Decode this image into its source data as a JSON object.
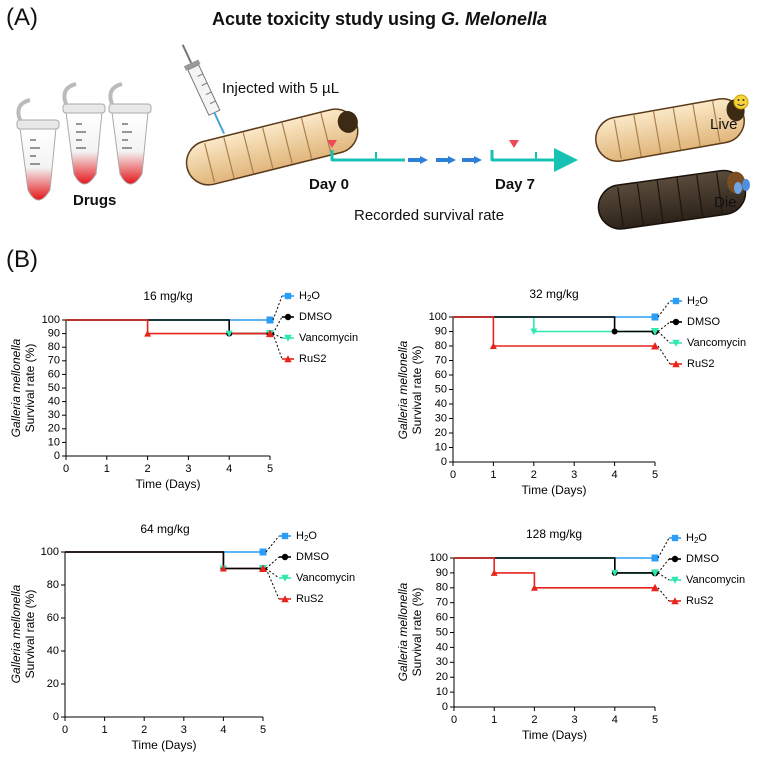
{
  "panel_a": {
    "label": "(A)",
    "title_prefix": "Acute toxicity study using ",
    "title_species": "G. Melonella",
    "drugs_label": "Drugs",
    "injection_label": "Injected with 5 µL",
    "day0_label": "Day 0",
    "day7_label": "Day 7",
    "recorded_label": "Recorded survival rate",
    "live_label": "Live",
    "die_label": "Die"
  },
  "panel_b": {
    "label": "(B)"
  },
  "colors": {
    "h2o": "#2a9df4",
    "dmso": "#000000",
    "vancomycin": "#2ee8b0",
    "rus2": "#e8231c",
    "timeline": "#17c1b4",
    "arrow": "#2f7fd6"
  },
  "chart_data": [
    {
      "type": "line",
      "step": true,
      "title": "16 mg/kg",
      "xlabel": "Time (Days)",
      "ylabel_line1": "Galleria mellonella",
      "ylabel_line2": "Survival rate (%)",
      "xlim": [
        0,
        5
      ],
      "ylim": [
        0,
        100
      ],
      "xticks": [
        0,
        1,
        2,
        3,
        4,
        5
      ],
      "yticks": [
        0,
        10,
        20,
        30,
        40,
        50,
        60,
        70,
        80,
        90,
        100
      ],
      "legend": [
        "H2O",
        "DMSO",
        "Vancomycin",
        "RuS2"
      ],
      "series": [
        {
          "name": "H2O",
          "key": "h2o",
          "marker": "square",
          "x": [
            0,
            5
          ],
          "y": [
            100,
            100
          ]
        },
        {
          "name": "Vancomycin",
          "key": "vancomycin",
          "marker": "tri-down",
          "x": [
            0,
            4,
            5
          ],
          "y": [
            100,
            90,
            90
          ]
        },
        {
          "name": "DMSO",
          "key": "dmso",
          "marker": "circle",
          "x": [
            0,
            4,
            5
          ],
          "y": [
            100,
            90,
            90
          ]
        },
        {
          "name": "RuS2",
          "key": "rus2",
          "marker": "tri-up",
          "x": [
            0,
            2,
            5
          ],
          "y": [
            100,
            90,
            90
          ]
        }
      ]
    },
    {
      "type": "line",
      "step": true,
      "title": "32 mg/kg",
      "xlabel": "Time (Days)",
      "ylabel_line1": "Galleria mellonella",
      "ylabel_line2": "Survival rate (%)",
      "xlim": [
        0,
        5
      ],
      "ylim": [
        0,
        100
      ],
      "xticks": [
        0,
        1,
        2,
        3,
        4,
        5
      ],
      "yticks": [
        0,
        10,
        20,
        30,
        40,
        50,
        60,
        70,
        80,
        90,
        100
      ],
      "legend": [
        "H2O",
        "DMSO",
        "Vancomycin",
        "RuS2"
      ],
      "series": [
        {
          "name": "H2O",
          "key": "h2o",
          "marker": "square",
          "x": [
            0,
            5
          ],
          "y": [
            100,
            100
          ]
        },
        {
          "name": "Vancomycin",
          "key": "vancomycin",
          "marker": "tri-down",
          "x": [
            0,
            2,
            5
          ],
          "y": [
            100,
            90,
            90
          ]
        },
        {
          "name": "DMSO",
          "key": "dmso",
          "marker": "circle",
          "x": [
            0,
            4,
            5
          ],
          "y": [
            100,
            90,
            90
          ]
        },
        {
          "name": "RuS2",
          "key": "rus2",
          "marker": "tri-up",
          "x": [
            0,
            1,
            5
          ],
          "y": [
            100,
            80,
            80
          ]
        }
      ]
    },
    {
      "type": "line",
      "step": true,
      "title": "64 mg/kg",
      "xlabel": "Time (Days)",
      "ylabel_line1": "Galleria mellonella",
      "ylabel_line2": "Survival rate (%)",
      "xlim": [
        0,
        5
      ],
      "ylim": [
        0,
        100
      ],
      "xticks": [
        0,
        1,
        2,
        3,
        4,
        5
      ],
      "yticks": [
        0,
        20,
        40,
        60,
        80,
        100
      ],
      "legend": [
        "H2O",
        "DMSO",
        "Vancomycin",
        "RuS2"
      ],
      "series": [
        {
          "name": "H2O",
          "key": "h2o",
          "marker": "square",
          "x": [
            0,
            5
          ],
          "y": [
            100,
            100
          ]
        },
        {
          "name": "Vancomycin",
          "key": "vancomycin",
          "marker": "tri-down",
          "x": [
            0,
            4,
            5
          ],
          "y": [
            100,
            90,
            90
          ]
        },
        {
          "name": "RuS2",
          "key": "rus2",
          "marker": "tri-up",
          "x": [
            0,
            4,
            5
          ],
          "y": [
            100,
            90,
            90
          ]
        },
        {
          "name": "DMSO",
          "key": "dmso",
          "marker": "circle",
          "x": [
            0,
            4,
            5
          ],
          "y": [
            100,
            90,
            90
          ]
        }
      ]
    },
    {
      "type": "line",
      "step": true,
      "title": "128 mg/kg",
      "xlabel": "Time (Days)",
      "ylabel_line1": "Galleria mellonella",
      "ylabel_line2": "Survival rate (%)",
      "xlim": [
        0,
        5
      ],
      "ylim": [
        0,
        100
      ],
      "xticks": [
        0,
        1,
        2,
        3,
        4,
        5
      ],
      "yticks": [
        0,
        10,
        20,
        30,
        40,
        50,
        60,
        70,
        80,
        90,
        100
      ],
      "legend": [
        "H2O",
        "DMSO",
        "Vancomycin",
        "RuS2"
      ],
      "series": [
        {
          "name": "H2O",
          "key": "h2o",
          "marker": "square",
          "x": [
            0,
            5
          ],
          "y": [
            100,
            100
          ]
        },
        {
          "name": "Vancomycin",
          "key": "vancomycin",
          "marker": "tri-down",
          "x": [
            0,
            4,
            5
          ],
          "y": [
            100,
            90,
            90
          ]
        },
        {
          "name": "DMSO",
          "key": "dmso",
          "marker": "circle",
          "x": [
            0,
            4,
            5
          ],
          "y": [
            100,
            90,
            90
          ]
        },
        {
          "name": "RuS2",
          "key": "rus2",
          "marker": "tri-up",
          "x": [
            0,
            1,
            2,
            5
          ],
          "y": [
            100,
            90,
            80,
            80
          ]
        }
      ]
    }
  ]
}
